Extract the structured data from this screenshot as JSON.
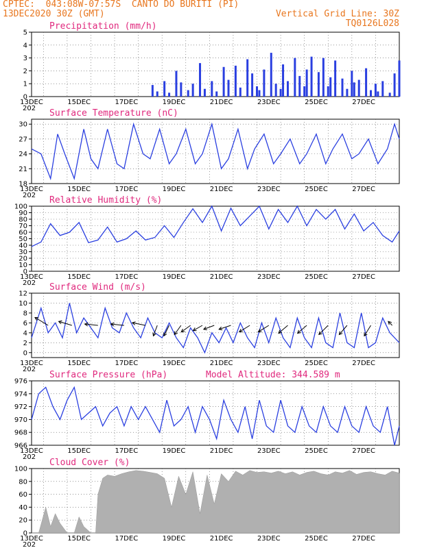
{
  "header": {
    "line1_left": "CPTEC:  043:08W-07:57S  CANTO DO BURITI (PI)",
    "line2_left": "13DEC2020 30Z (GMT)",
    "line2_right": "Vertical Grid Line: 30Z",
    "line3_right": "TQ0126L028",
    "year_fragment": "202"
  },
  "colors": {
    "title": "#e0287d",
    "header": "#e8761e",
    "line": "#2a3fe0",
    "cloud": "#b0b0b0",
    "frame": "#000000"
  },
  "x_axis": {
    "tick_labels": [
      "13DEC",
      "15DEC",
      "17DEC",
      "19DEC",
      "21DEC",
      "23DEC",
      "25DEC",
      "27DEC"
    ],
    "range_days": [
      0,
      15.5
    ]
  },
  "chart_data": [
    {
      "type": "bar",
      "title": "Precipitation (mm/h)",
      "ylim": [
        0,
        5
      ],
      "yticks": [
        0,
        1,
        2,
        3,
        4,
        5
      ],
      "x": [
        5.1,
        5.3,
        5.6,
        5.8,
        6.1,
        6.3,
        6.6,
        6.8,
        7.1,
        7.3,
        7.6,
        7.8,
        8.1,
        8.3,
        8.6,
        8.8,
        9.1,
        9.3,
        9.5,
        9.6,
        9.8,
        10.1,
        10.3,
        10.5,
        10.6,
        10.8,
        11.1,
        11.3,
        11.5,
        11.6,
        11.8,
        12.1,
        12.3,
        12.5,
        12.6,
        12.8,
        13.1,
        13.3,
        13.5,
        13.6,
        13.8,
        14.1,
        14.3,
        14.5,
        14.6,
        14.8,
        15.1,
        15.3,
        15.5
      ],
      "values": [
        0.9,
        0.4,
        1.2,
        0.3,
        2.0,
        1.1,
        0.5,
        1.0,
        2.6,
        0.6,
        1.2,
        0.4,
        2.3,
        1.3,
        2.4,
        0.7,
        2.9,
        1.8,
        0.8,
        0.5,
        2.1,
        3.4,
        1.0,
        0.6,
        2.5,
        1.2,
        3.0,
        1.6,
        0.8,
        2.1,
        3.1,
        1.9,
        3.0,
        0.8,
        1.5,
        2.8,
        1.4,
        0.6,
        2.0,
        1.1,
        1.3,
        2.2,
        0.5,
        1.0,
        0.4,
        1.2,
        0.3,
        1.8,
        2.8
      ]
    },
    {
      "type": "line",
      "title": "Surface Temperature (nC)",
      "ylim": [
        18,
        31
      ],
      "yticks": [
        18,
        21,
        24,
        27,
        30
      ],
      "x": [
        0,
        0.4,
        0.8,
        1.1,
        1.4,
        1.8,
        2.2,
        2.5,
        2.8,
        3.2,
        3.6,
        3.9,
        4.3,
        4.7,
        5.0,
        5.4,
        5.8,
        6.1,
        6.5,
        6.9,
        7.2,
        7.6,
        8.0,
        8.3,
        8.7,
        9.1,
        9.4,
        9.8,
        10.2,
        10.5,
        10.9,
        11.3,
        11.6,
        12.0,
        12.4,
        12.7,
        13.1,
        13.5,
        13.8,
        14.2,
        14.6,
        15.0,
        15.3,
        15.5
      ],
      "values": [
        25,
        24,
        19,
        28,
        24,
        19,
        29,
        23,
        21,
        29,
        22,
        21,
        30,
        24,
        23,
        29,
        22,
        24,
        29,
        22,
        24,
        30,
        21,
        23,
        29,
        21,
        25,
        28,
        22,
        24,
        27,
        22,
        24,
        28,
        22,
        25,
        28,
        23,
        24,
        27,
        22,
        25,
        30,
        27
      ]
    },
    {
      "type": "line",
      "title": "Relative Humidity (%)",
      "ylim": [
        0,
        100
      ],
      "yticks": [
        0,
        10,
        20,
        30,
        40,
        50,
        60,
        70,
        80,
        90,
        100
      ],
      "x": [
        0,
        0.4,
        0.8,
        1.2,
        1.6,
        2.0,
        2.4,
        2.8,
        3.2,
        3.6,
        4.0,
        4.4,
        4.8,
        5.2,
        5.6,
        6.0,
        6.4,
        6.8,
        7.2,
        7.6,
        8.0,
        8.4,
        8.8,
        9.2,
        9.6,
        10.0,
        10.4,
        10.8,
        11.2,
        11.6,
        12.0,
        12.4,
        12.8,
        13.2,
        13.6,
        14.0,
        14.4,
        14.8,
        15.2,
        15.5
      ],
      "values": [
        38,
        45,
        73,
        55,
        60,
        75,
        44,
        48,
        68,
        45,
        50,
        62,
        48,
        52,
        70,
        52,
        75,
        96,
        75,
        100,
        62,
        97,
        70,
        85,
        100,
        65,
        95,
        75,
        100,
        70,
        95,
        80,
        95,
        65,
        88,
        62,
        75,
        55,
        45,
        62
      ]
    },
    {
      "type": "line",
      "title": "Surface Wind (m/s)",
      "ylim": [
        -1,
        12
      ],
      "yticks": [
        0,
        2,
        4,
        6,
        8,
        10,
        12
      ],
      "x": [
        0,
        0.4,
        0.7,
        1.0,
        1.3,
        1.6,
        1.9,
        2.2,
        2.5,
        2.8,
        3.1,
        3.4,
        3.7,
        4.0,
        4.3,
        4.6,
        4.9,
        5.2,
        5.5,
        5.8,
        6.1,
        6.4,
        6.7,
        7.0,
        7.3,
        7.6,
        7.9,
        8.2,
        8.5,
        8.8,
        9.1,
        9.4,
        9.7,
        10.0,
        10.3,
        10.6,
        10.9,
        11.2,
        11.5,
        11.8,
        12.1,
        12.4,
        12.7,
        13.0,
        13.3,
        13.6,
        13.9,
        14.2,
        14.5,
        14.8,
        15.1,
        15.5
      ],
      "values": [
        3,
        9,
        4,
        6,
        3,
        10,
        4,
        7,
        5,
        3,
        9,
        5,
        4,
        8,
        5,
        3,
        7,
        4,
        3,
        6,
        3,
        1,
        5,
        3,
        0,
        4,
        2,
        5,
        2,
        6,
        3,
        1,
        6,
        2,
        7,
        3,
        1,
        7,
        3,
        1,
        7,
        2,
        1,
        8,
        2,
        1,
        8,
        1,
        2,
        7,
        4,
        2
      ],
      "arrows": [
        {
          "x": 0.7,
          "u": -1,
          "v": 0.6
        },
        {
          "x": 1.7,
          "u": -1,
          "v": 0.3
        },
        {
          "x": 2.8,
          "u": -1,
          "v": 0.1
        },
        {
          "x": 3.9,
          "u": -1,
          "v": 0.1
        },
        {
          "x": 4.8,
          "u": -1,
          "v": 0.2
        },
        {
          "x": 5.3,
          "u": -0.3,
          "v": -0.8
        },
        {
          "x": 5.8,
          "u": -0.4,
          "v": -0.8
        },
        {
          "x": 6.3,
          "u": -0.5,
          "v": -0.7
        },
        {
          "x": 6.7,
          "u": -0.7,
          "v": -0.5
        },
        {
          "x": 7.2,
          "u": -0.7,
          "v": -0.4
        },
        {
          "x": 7.7,
          "u": -0.8,
          "v": -0.3
        },
        {
          "x": 8.4,
          "u": -0.9,
          "v": -0.3
        },
        {
          "x": 9.2,
          "u": -0.8,
          "v": -0.5
        },
        {
          "x": 10.0,
          "u": -0.8,
          "v": -0.5
        },
        {
          "x": 10.8,
          "u": -0.7,
          "v": -0.6
        },
        {
          "x": 11.6,
          "u": -0.7,
          "v": -0.6
        },
        {
          "x": 12.5,
          "u": -0.7,
          "v": -0.7
        },
        {
          "x": 13.3,
          "u": -0.6,
          "v": -0.7
        },
        {
          "x": 14.3,
          "u": -0.5,
          "v": -0.8
        },
        {
          "x": 15.2,
          "u": -0.3,
          "v": 0.3
        }
      ]
    },
    {
      "type": "line",
      "title": "Surface Pressure (hPa)",
      "subtitle": "Model Altitude: 344.589  m",
      "ylim": [
        966,
        976
      ],
      "yticks": [
        966,
        968,
        970,
        972,
        974,
        976
      ],
      "x": [
        0,
        0.3,
        0.6,
        0.9,
        1.2,
        1.5,
        1.8,
        2.1,
        2.4,
        2.7,
        3.0,
        3.3,
        3.6,
        3.9,
        4.2,
        4.5,
        4.8,
        5.1,
        5.4,
        5.7,
        6.0,
        6.3,
        6.6,
        6.9,
        7.2,
        7.5,
        7.8,
        8.1,
        8.4,
        8.7,
        9.0,
        9.3,
        9.6,
        9.9,
        10.2,
        10.5,
        10.8,
        11.1,
        11.4,
        11.7,
        12.0,
        12.3,
        12.6,
        12.9,
        13.2,
        13.5,
        13.8,
        14.1,
        14.4,
        14.7,
        15.0,
        15.3,
        15.5
      ],
      "values": [
        970,
        974,
        975,
        972,
        970,
        973,
        975,
        970,
        971,
        972,
        969,
        971,
        972,
        969,
        972,
        970,
        972,
        970,
        968,
        973,
        969,
        970,
        972,
        968,
        972,
        970,
        967,
        973,
        970,
        968,
        972,
        967,
        973,
        969,
        968,
        973,
        969,
        968,
        972,
        969,
        968,
        972,
        969,
        968,
        972,
        969,
        968,
        972,
        969,
        968,
        972,
        966,
        969
      ]
    },
    {
      "type": "area",
      "title": "Cloud Cover (%)",
      "ylim": [
        0,
        100
      ],
      "yticks": [
        0,
        20,
        40,
        60,
        80,
        100
      ],
      "x": [
        0,
        0.3,
        0.6,
        0.8,
        1.0,
        1.2,
        1.5,
        1.8,
        2.0,
        2.2,
        2.5,
        2.7,
        2.8,
        3.0,
        3.2,
        3.5,
        3.8,
        4.1,
        4.4,
        4.7,
        5.0,
        5.3,
        5.6,
        5.9,
        6.2,
        6.5,
        6.8,
        7.1,
        7.4,
        7.7,
        8.0,
        8.3,
        8.6,
        8.9,
        9.2,
        9.5,
        9.8,
        10.1,
        10.4,
        10.7,
        11.0,
        11.3,
        11.6,
        11.9,
        12.2,
        12.5,
        12.8,
        13.1,
        13.4,
        13.7,
        14.0,
        14.3,
        14.6,
        14.9,
        15.2,
        15.5
      ],
      "values": [
        0,
        0,
        40,
        10,
        30,
        15,
        0,
        0,
        25,
        10,
        0,
        0,
        60,
        85,
        90,
        88,
        92,
        95,
        97,
        96,
        94,
        92,
        85,
        40,
        88,
        60,
        95,
        30,
        90,
        45,
        92,
        80,
        96,
        90,
        97,
        94,
        95,
        93,
        96,
        92,
        95,
        90,
        94,
        96,
        92,
        90,
        95,
        93,
        97,
        91,
        94,
        95,
        92,
        90,
        96,
        93
      ]
    }
  ]
}
